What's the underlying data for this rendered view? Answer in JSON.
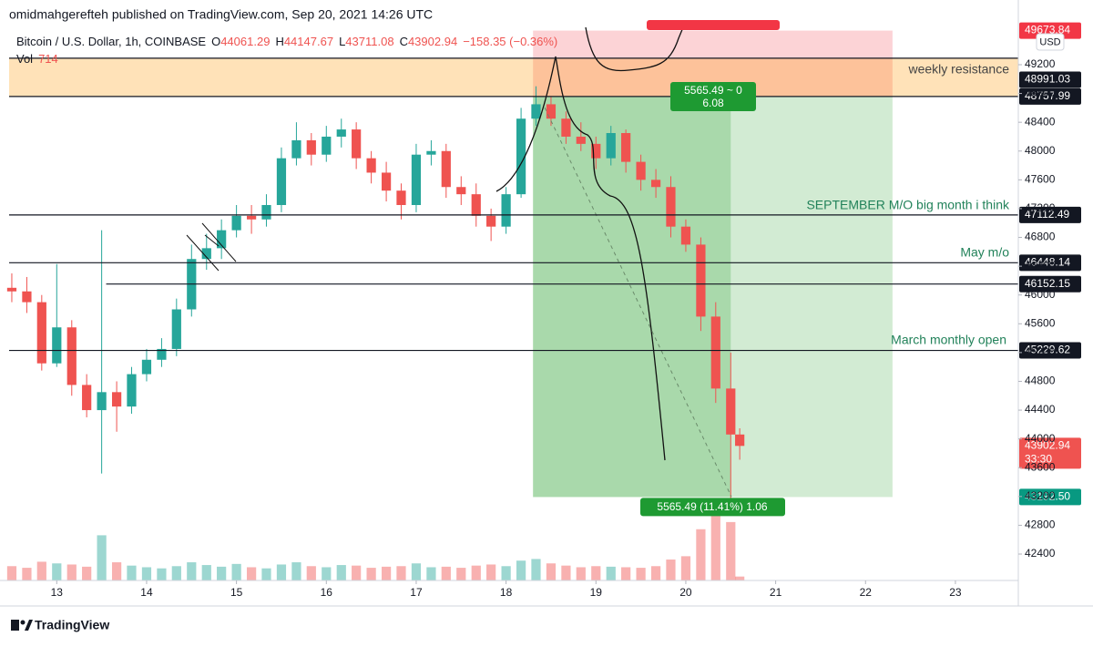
{
  "header": {
    "publisher": "omidmahgerefteh published on TradingView.com, Sep 20, 2021 14:26 UTC",
    "symbol": "Bitcoin / U.S. Dollar, 1h, COINBASE",
    "ohlc": [
      {
        "label": "O",
        "value": 44061.29
      },
      {
        "label": "H",
        "value": 44147.67
      },
      {
        "label": "L",
        "value": 43711.08
      },
      {
        "label": "C",
        "value": 43902.94
      }
    ],
    "change": "−158.35 (−0.36%)",
    "vol_label": "Vol",
    "vol_value": 714,
    "currency": "USD"
  },
  "footer": {
    "brand": "TradingView"
  },
  "chart_data": {
    "type": "candlestick",
    "xlim": [
      12.47,
      23.7
    ],
    "xticks": [
      13,
      14,
      15,
      16,
      17,
      18,
      19,
      20,
      21,
      22,
      23
    ],
    "ylim": [
      42033,
      49719
    ],
    "yticks": [
      42400,
      42800,
      43200,
      43600,
      44000,
      44400,
      44800,
      45200,
      45600,
      46000,
      46400,
      46800,
      47200,
      47600,
      48000,
      48400,
      48800,
      49200
    ],
    "up_color": "#26a69a",
    "down_color": "#ef5350",
    "x": [
      12.5,
      12.667,
      12.833,
      13,
      13.167,
      13.333,
      13.5,
      13.667,
      13.833,
      14,
      14.167,
      14.333,
      14.5,
      14.667,
      14.833,
      15,
      15.167,
      15.333,
      15.5,
      15.667,
      15.833,
      16,
      16.167,
      16.333,
      16.5,
      16.667,
      16.833,
      17,
      17.167,
      17.333,
      17.5,
      17.667,
      17.833,
      18,
      18.167,
      18.333,
      18.5,
      18.667,
      18.833,
      19,
      19.167,
      19.333,
      19.5,
      19.667,
      19.833,
      20,
      20.167,
      20.333,
      20.5,
      20.6
    ],
    "open": [
      46100,
      46050,
      45900,
      45050,
      45550,
      44750,
      44400,
      44650,
      44450,
      44900,
      45100,
      45250,
      45800,
      46500,
      46650,
      46900,
      47100,
      47050,
      47250,
      47900,
      48150,
      47950,
      48200,
      48300,
      47900,
      47700,
      47450,
      47250,
      47950,
      48000,
      47500,
      47400,
      47100,
      46950,
      47400,
      48450,
      48650,
      48450,
      48200,
      48100,
      47900,
      48250,
      47850,
      47600,
      47500,
      46950,
      46700,
      45700,
      44700,
      44061.29
    ],
    "high": [
      46300,
      46250,
      46000,
      46430,
      45650,
      44900,
      46900,
      44800,
      45000,
      45250,
      45400,
      45950,
      46700,
      46850,
      47050,
      47250,
      47250,
      47400,
      48050,
      48400,
      48250,
      48350,
      48450,
      48400,
      48000,
      47850,
      47550,
      48100,
      48150,
      48100,
      47650,
      47550,
      47200,
      47500,
      48600,
      48900,
      48750,
      48550,
      48400,
      48200,
      48350,
      48300,
      47950,
      47750,
      47650,
      47050,
      46800,
      45900,
      45200,
      44147.67
    ],
    "low": [
      45900,
      45750,
      44950,
      45000,
      44600,
      44300,
      43520,
      44100,
      44350,
      44800,
      45000,
      45150,
      45700,
      46350,
      46500,
      46800,
      46850,
      46950,
      47150,
      47800,
      47800,
      47850,
      48050,
      47750,
      47550,
      47300,
      47050,
      47150,
      47800,
      47350,
      47250,
      46950,
      46750,
      46850,
      47350,
      48350,
      48350,
      48100,
      48000,
      47750,
      47800,
      47700,
      47450,
      47350,
      46800,
      46600,
      45500,
      44500,
      43150,
      43711.08
    ],
    "close": [
      46050,
      45900,
      45050,
      45550,
      44750,
      44400,
      44650,
      44450,
      44900,
      45100,
      45250,
      45800,
      46500,
      46650,
      46900,
      47100,
      47050,
      47250,
      47900,
      48150,
      47950,
      48200,
      48300,
      47900,
      47700,
      47450,
      47250,
      47950,
      48000,
      47500,
      47400,
      47100,
      46950,
      47400,
      48450,
      48650,
      48450,
      48200,
      48100,
      47900,
      48250,
      47850,
      47600,
      47500,
      46950,
      46700,
      45700,
      44700,
      44061.29,
      43902.94
    ],
    "volume": [
      2600,
      2300,
      3400,
      3100,
      2900,
      2500,
      8200,
      3300,
      2700,
      2400,
      2200,
      2600,
      3300,
      2800,
      2500,
      3000,
      2400,
      2200,
      2900,
      3300,
      2600,
      2400,
      2800,
      2700,
      2300,
      2500,
      2600,
      3100,
      2400,
      2500,
      2300,
      2700,
      2900,
      2600,
      3600,
      3900,
      3100,
      2700,
      2400,
      2600,
      2500,
      2400,
      2300,
      2600,
      3800,
      4400,
      9300,
      12400,
      10600,
      714
    ],
    "hlines": [
      {
        "price": 49290
      },
      {
        "price": 48757.99
      },
      {
        "price": 47112.49
      },
      {
        "price": 46448.14
      },
      {
        "price": 46152.15,
        "x_start": 13.55
      },
      {
        "price": 45229.62
      }
    ],
    "axis_tags": [
      {
        "value": 49673.84,
        "color": "#f23645"
      },
      {
        "value": 48991.03,
        "color": "#131722"
      },
      {
        "value": 48757.99,
        "color": "#131722"
      },
      {
        "value": 47112.49,
        "color": "#131722"
      },
      {
        "value": 46448.14,
        "color": "#131722"
      },
      {
        "value": 46152.15,
        "color": "#131722"
      },
      {
        "value": 45229.62,
        "color": "#131722"
      },
      {
        "value": 43902.94,
        "color": "#ef5350",
        "countdown": "33:30"
      },
      {
        "value": 43192.5,
        "label": "43192.50",
        "color": "#089981"
      }
    ],
    "position": {
      "x_start": 18.3,
      "x_split": 20.5,
      "x_end": 22.3,
      "stop_tag": 0,
      "entry_tag": 2,
      "target_tag": 8,
      "risk_label": "5565.49 ~ 0",
      "ratio_label": "6.08",
      "target_label": "5565.49 (11.41%) 1.06"
    },
    "notes": [
      "weekly resistance",
      "SEPTEMBER M/O big month i think",
      "May m/o",
      "March monthly open"
    ]
  }
}
